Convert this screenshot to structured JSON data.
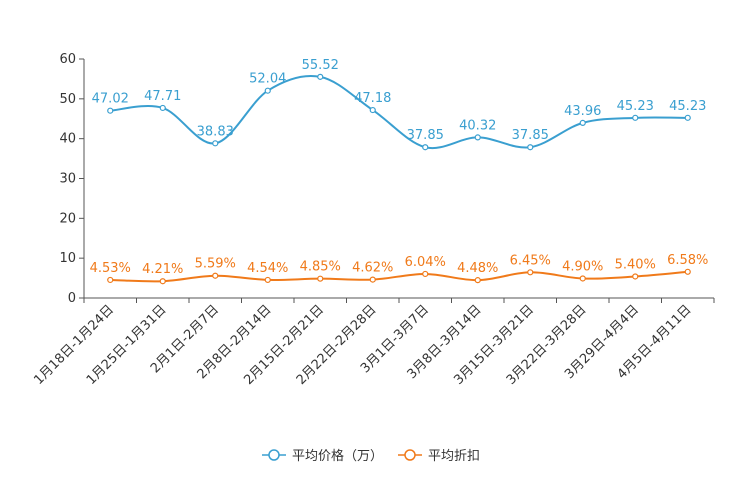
{
  "chart_data": {
    "type": "line",
    "categories": [
      "1月18日-1月24日",
      "1月25日-1月31日",
      "2月1日-2月7日",
      "2月8日-2月14日",
      "2月15日-2月21日",
      "2月22日-2月28日",
      "3月1日-3月7日",
      "3月8日-3月14日",
      "3月15日-3月21日",
      "3月22日-3月28日",
      "3月29日-4月4日",
      "4月5日-4月11日"
    ],
    "ylim": [
      0,
      60
    ],
    "yticks": [
      "0",
      "10",
      "20",
      "30",
      "40",
      "50",
      "60"
    ],
    "series": [
      {
        "name": "平均价格（万）",
        "color": "#3a9fd0",
        "values": [
          47.02,
          47.71,
          38.83,
          52.04,
          55.52,
          47.18,
          37.85,
          40.32,
          37.85,
          43.96,
          45.23,
          45.23
        ],
        "labels": [
          "47.02",
          "47.71",
          "38.83",
          "52.04",
          "55.52",
          "47.18",
          "37.85",
          "40.32",
          "37.85",
          "43.96",
          "45.23",
          "45.23"
        ]
      },
      {
        "name": "平均折扣",
        "color": "#f07a1a",
        "values": [
          4.53,
          4.21,
          5.59,
          4.54,
          4.85,
          4.62,
          6.04,
          4.48,
          6.45,
          4.9,
          5.4,
          6.58
        ],
        "labels": [
          "4.53%",
          "4.21%",
          "5.59%",
          "4.54%",
          "4.85%",
          "4.62%",
          "6.04%",
          "4.48%",
          "6.45%",
          "4.90%",
          "5.40%",
          "6.58%"
        ]
      }
    ],
    "legend_position": "bottom-center",
    "grid": false
  }
}
